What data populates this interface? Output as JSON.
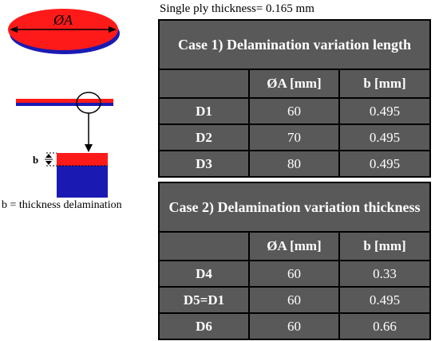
{
  "ply_thickness_label": "Single ply thickness= 0.165 mm",
  "diagram": {
    "disk_label": "ØA",
    "b_label": "b",
    "caption": "b = thickness delamination",
    "colors": {
      "red": "#ff1a1a",
      "blue": "#1a1ab3"
    }
  },
  "case1": {
    "title": "Case 1) Delamination variation length",
    "header": {
      "col1": "",
      "col2": "ØA [mm]",
      "col3": "b [mm]"
    },
    "rows": [
      {
        "label": "D1",
        "a": "60",
        "b": "0.495"
      },
      {
        "label": "D2",
        "a": "70",
        "b": "0.495"
      },
      {
        "label": "D3",
        "a": "80",
        "b": "0.495"
      }
    ]
  },
  "case2": {
    "title": "Case 2) Delamination variation thickness",
    "header": {
      "col1": "",
      "col2": "ØA [mm]",
      "col3": "b [mm]"
    },
    "rows": [
      {
        "label": "D4",
        "a": "60",
        "b": "0.33"
      },
      {
        "label": "D5=D1",
        "a": "60",
        "b": "0.495"
      },
      {
        "label": "D6",
        "a": "60",
        "b": "0.66"
      }
    ]
  }
}
